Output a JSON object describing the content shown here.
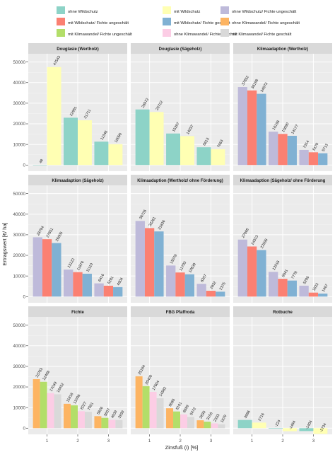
{
  "chart_data": {
    "type": "bar",
    "layout": "faceted 3x3 grid, shared y axis per row, legend on top",
    "ylabel": "Ertragswert [€/ ha]",
    "xlabel": "Zinsfuß (i) [%]",
    "categories": [
      "1",
      "2",
      "3"
    ],
    "y_ticks": [
      "0",
      "10000",
      "20000",
      "30000",
      "40000",
      "50000"
    ],
    "ylim": [
      -3000,
      54000
    ],
    "grid": true,
    "background": "#EBEBEB",
    "legend": [
      {
        "name": "ohne Wildschutz",
        "color": "#8DD3C7"
      },
      {
        "name": "mit Wildschutz",
        "color": "#FFFFB3"
      },
      {
        "name": "ohne Wildschutz/ Fichte ungeschält",
        "color": "#BEBADA"
      },
      {
        "name": "mit Wildschutz/ Fichte ungeschält",
        "color": "#FB8072"
      },
      {
        "name": "mit Wildschutz/ Fichte geschält",
        "color": "#80B1D3"
      },
      {
        "name": "ohne Klimawandel/ Fichte ungeschält",
        "color": "#FDB462"
      },
      {
        "name": "mit Klimawandel/ Fichte ungeschält",
        "color": "#B3DE69"
      },
      {
        "name": "ohne Klimawandel/ Fichte geschält",
        "color": "#FCCDE5"
      },
      {
        "name": "mit Klimawandel/ Fichte geschält",
        "color": "#D9D9D9"
      }
    ],
    "panels": [
      {
        "title": "Douglasie (Wertholz)",
        "series": [
          {
            "legend_index": 0,
            "values": [
              48,
              22961,
              11346
            ],
            "labels": [
              "48",
              "22961",
              "11346"
            ]
          },
          {
            "legend_index": 1,
            "values": [
              47543,
              21711,
              10086
            ],
            "labels": [
              "47543",
              "21711",
              "10086"
            ]
          }
        ]
      },
      {
        "title": "Douglasie (Sägeholz)",
        "series": [
          {
            "legend_index": 0,
            "values": [
              26972,
              15287,
              8613
            ],
            "labels": [
              "26972",
              "15287",
              "8613"
            ]
          },
          {
            "legend_index": 1,
            "values": [
              25722,
              14037,
              7663
            ],
            "labels": [
              "25722",
              "14037",
              "7663"
            ]
          }
        ]
      },
      {
        "title": "Klimaadaption (Wertholz)",
        "series": [
          {
            "legend_index": 2,
            "values": [
              37852,
              16198,
              7314
            ],
            "labels": [
              "37852",
              "16198",
              "7314"
            ]
          },
          {
            "legend_index": 3,
            "values": [
              36198,
              15090,
              6170
            ],
            "labels": [
              "36198",
              "15090",
              "6170"
            ]
          },
          {
            "legend_index": 4,
            "values": [
              34573,
              14177,
              5713
            ],
            "labels": [
              "34573",
              "14177",
              "5713"
            ]
          }
        ]
      },
      {
        "title": "Klimaadaption (Sägeholz)",
        "series": [
          {
            "legend_index": 2,
            "values": [
              28794,
              13122,
              6416
            ],
            "labels": [
              "28794",
              "13122",
              "6416"
            ]
          },
          {
            "legend_index": 3,
            "values": [
              27851,
              11876,
              5281
            ],
            "labels": [
              "27851",
              "11876",
              "5281"
            ]
          },
          {
            "legend_index": 4,
            "values": [
              26005,
              11110,
              4604
            ],
            "labels": [
              "26005",
              "11110",
              "4604"
            ]
          }
        ]
      },
      {
        "title": "Klimaadaption (Wertholz/ ohne Förderung)",
        "series": [
          {
            "legend_index": 2,
            "values": [
              36726,
              15078,
              6207
            ],
            "labels": [
              "36726",
              "15078",
              "6207"
            ]
          },
          {
            "legend_index": 3,
            "values": [
              33261,
              11703,
              2832
            ],
            "labels": [
              "33261",
              "11703",
              "2832"
            ]
          },
          {
            "legend_index": 4,
            "values": [
              31636,
              10839,
              2375
            ],
            "labels": [
              "31636",
              "10839",
              "2375"
            ]
          }
        ]
      },
      {
        "title": "Klimaadaption (Sägeholz/ ohne Förderung",
        "series": [
          {
            "legend_index": 2,
            "values": [
              27668,
              12016,
              5296
            ],
            "labels": [
              "27668",
              "12016",
              "5296"
            ]
          },
          {
            "legend_index": 3,
            "values": [
              24313,
              8641,
              1923
            ],
            "labels": [
              "24313",
              "8641",
              "1923"
            ]
          },
          {
            "legend_index": 4,
            "values": [
              22598,
              7778,
              1467
            ],
            "labels": [
              "22598",
              "7778",
              "1467"
            ]
          }
        ]
      },
      {
        "title": "Fichte",
        "series": [
          {
            "legend_index": 5,
            "values": [
              23783,
              11818,
              5826
            ],
            "labels": [
              "23783",
              "11818",
              "5826"
            ]
          },
          {
            "legend_index": 6,
            "values": [
              22488,
              11096,
              5007
            ],
            "labels": [
              "22488",
              "11096",
              "5007"
            ]
          },
          {
            "legend_index": 7,
            "values": [
              17049,
              8227,
              4039
            ],
            "labels": [
              "17049",
              "8227",
              "4039"
            ]
          },
          {
            "legend_index": 8,
            "values": [
              16452,
              7951,
              3939
            ],
            "labels": [
              "16452",
              "7951",
              "3939"
            ]
          }
        ]
      },
      {
        "title": "FBG Pfaffroda",
        "series": [
          {
            "legend_index": 5,
            "values": [
              25184,
              9666,
              3835
            ],
            "labels": [
              "25184",
              "9666",
              "3835"
            ]
          },
          {
            "legend_index": 6,
            "values": [
              20400,
              8101,
              3156
            ],
            "labels": [
              "20400",
              "8101",
              "3156"
            ]
          },
          {
            "legend_index": 7,
            "values": [
              17604,
              6699,
              2333
            ],
            "labels": [
              "17604",
              "6699",
              "2333"
            ]
          },
          {
            "legend_index": 8,
            "values": [
              14582,
              5472,
              1879
            ],
            "labels": [
              "14582",
              "5472",
              "1879"
            ]
          }
        ]
      },
      {
        "title": "Rotbuche",
        "series": [
          {
            "legend_index": 0,
            "values": [
              3986,
              -224,
              -1404
            ],
            "labels": [
              "3986",
              "-224",
              "-1404"
            ]
          },
          {
            "legend_index": 1,
            "values": [
              2716,
              -1464,
              -2734
            ],
            "labels": [
              "2716",
              "-1464",
              "-2734"
            ]
          }
        ]
      }
    ]
  }
}
